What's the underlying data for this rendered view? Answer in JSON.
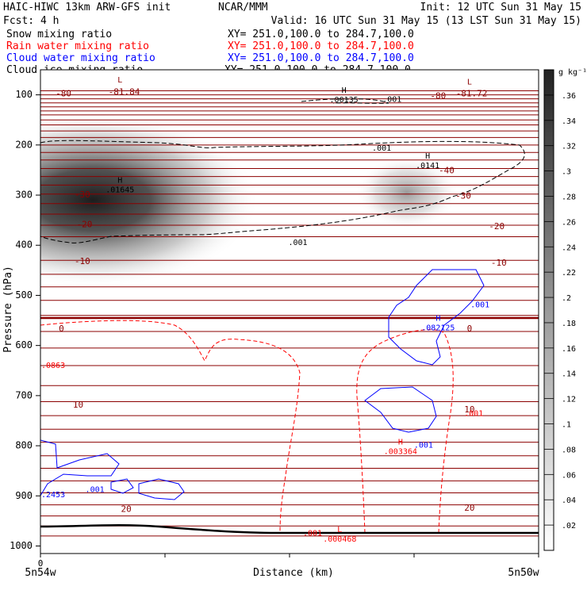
{
  "header": {
    "line1_left": "HAIC-HIWC 13km ARW-GFS init",
    "line1_center": "NCAR/MMM",
    "line1_right": "Init: 12 UTC Sun 31 May 15",
    "line2_left": "Fcst:   4 h",
    "line2_right": "Valid: 16 UTC Sun 31 May 15 (13 LST Sun 31 May 15)",
    "fields": [
      {
        "name": "Snow mixing ratio",
        "xy": "XY= 251.0,100.0 to 284.7,100.0",
        "color": "#000000"
      },
      {
        "name": "Rain water mixing ratio",
        "xy": "XY= 251.0,100.0 to 284.7,100.0",
        "color": "#ff0000"
      },
      {
        "name": "Cloud water mixing ratio",
        "xy": "XY= 251.0,100.0 to 284.7,100.0",
        "color": "#0000ff"
      },
      {
        "name": "Cloud ice mixing ratio",
        "xy": "XY= 251.0,100.0 to 284.7,100.0",
        "color": "#000000"
      }
    ]
  },
  "colors": {
    "temperature": "#8b0000",
    "rain": "#ff0000",
    "cloud_water": "#0000ff",
    "cloud_ice": "#000000"
  },
  "chart_data": {
    "type": "heatmap",
    "ylabel": "Pressure (hPa)",
    "xlabel": "Distance (km)",
    "x_range": [
      0,
      238
    ],
    "y_range": [
      50,
      1015
    ],
    "y_scale": "linear-reversed",
    "y_ticks": [
      100,
      200,
      300,
      400,
      500,
      600,
      700,
      800,
      900,
      1000
    ],
    "x_ticks": [
      0
    ],
    "x_endpoints": [
      "5n54w",
      "5n50w"
    ],
    "colorbar": {
      "unit": "g kg⁻¹",
      "range": [
        0,
        0.38
      ],
      "ticks": [
        ".36",
        ".34",
        ".32",
        ".3",
        ".28",
        ".26",
        ".24",
        ".22",
        ".2",
        ".18",
        ".16",
        ".14",
        ".12",
        ".1",
        ".08",
        ".06",
        ".04",
        ".02"
      ],
      "tick_values": [
        0.36,
        0.34,
        0.32,
        0.3,
        0.28,
        0.26,
        0.24,
        0.22,
        0.2,
        0.18,
        0.16,
        0.14,
        0.12,
        0.1,
        0.08,
        0.06,
        0.04,
        0.02
      ]
    },
    "snow_maxima": [
      {
        "x": 25,
        "p": 310,
        "value": 0.35
      },
      {
        "x": 175,
        "p": 295,
        "value": 0.18
      }
    ],
    "isotherm_labels": [
      {
        "text": "-80",
        "x": 11,
        "p": 98
      },
      {
        "text": "-81.84",
        "x": 40,
        "p": 95
      },
      {
        "text": "-80",
        "x": 190,
        "p": 103
      },
      {
        "text": "-81.72",
        "x": 206,
        "p": 98
      },
      {
        "text": "-40",
        "x": 194,
        "p": 252
      },
      {
        "text": "-30",
        "x": 20,
        "p": 300
      },
      {
        "text": "-30",
        "x": 202,
        "p": 302
      },
      {
        "text": "-20",
        "x": 21,
        "p": 359
      },
      {
        "text": "-20",
        "x": 218,
        "p": 363
      },
      {
        "text": "-10",
        "x": 20,
        "p": 433
      },
      {
        "text": "-10",
        "x": 219,
        "p": 436
      },
      {
        "text": "0",
        "x": 10,
        "p": 567
      },
      {
        "text": "0",
        "x": 205,
        "p": 567
      },
      {
        "text": "10",
        "x": 18,
        "p": 719
      },
      {
        "text": "10",
        "x": 205,
        "p": 729
      },
      {
        "text": "20",
        "x": 41,
        "p": 927
      },
      {
        "text": "20",
        "x": 205,
        "p": 925
      }
    ],
    "extrema_labels": [
      {
        "mark": "L",
        "x": 38,
        "p": 85
      },
      {
        "mark": "L",
        "x": 205,
        "p": 89
      },
      {
        "mark": "H",
        "x": 145,
        "p": 105,
        "value": ".00135"
      },
      {
        "mark": "H",
        "x": 38,
        "p": 285,
        "value": ".01645"
      },
      {
        "mark": "H",
        "x": 185,
        "p": 237,
        "value": ".0141"
      },
      {
        "mark": "H",
        "x": 190,
        "p": 560,
        "value": ".082125"
      },
      {
        "mark": "H",
        "x": 172,
        "p": 807,
        "value": ".003364"
      },
      {
        "mark": "L",
        "x": 143,
        "p": 982,
        "value": ".000468"
      }
    ],
    "contour_labels": [
      {
        "text": ".001",
        "x": 168,
        "p": 109,
        "color": "#000000"
      },
      {
        "text": ".001",
        "x": 163,
        "p": 207,
        "color": "#000000"
      },
      {
        "text": ".001",
        "x": 123,
        "p": 395,
        "color": "#000000"
      },
      {
        "text": ".001",
        "x": 210,
        "p": 519,
        "color": "#0000ff"
      },
      {
        "text": ".001",
        "x": 183,
        "p": 799,
        "color": "#0000ff"
      },
      {
        "text": ".001",
        "x": 207,
        "p": 736,
        "color": "#ff0000"
      },
      {
        "text": ".001",
        "x": 130,
        "p": 975,
        "color": "#ff0000"
      },
      {
        "text": ".001",
        "x": 26,
        "p": 888,
        "color": "#0000ff"
      },
      {
        "text": ".0863",
        "x": 0,
        "p": 640,
        "color": "#ff0000"
      },
      {
        "text": ".2453",
        "x": 0,
        "p": 898,
        "color": "#0000ff"
      }
    ]
  }
}
